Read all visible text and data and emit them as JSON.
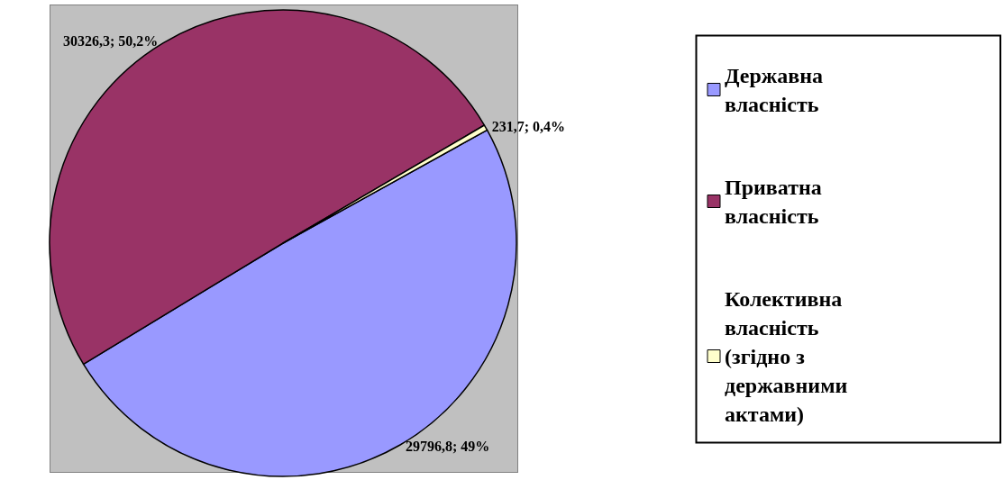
{
  "chart_data": {
    "type": "pie",
    "categories": [
      "Державна власність",
      "Приватна власність",
      "Колективна власність (згідно з державними актами)"
    ],
    "values": [
      29796.8,
      30326.3,
      231.7
    ],
    "colors": [
      "#9999ff",
      "#993366",
      "#ffffcc"
    ],
    "value_labels": [
      "29796,8; 49%",
      "30326,3; 50,2%",
      "231,7; 0,4%"
    ],
    "legend": "right"
  }
}
